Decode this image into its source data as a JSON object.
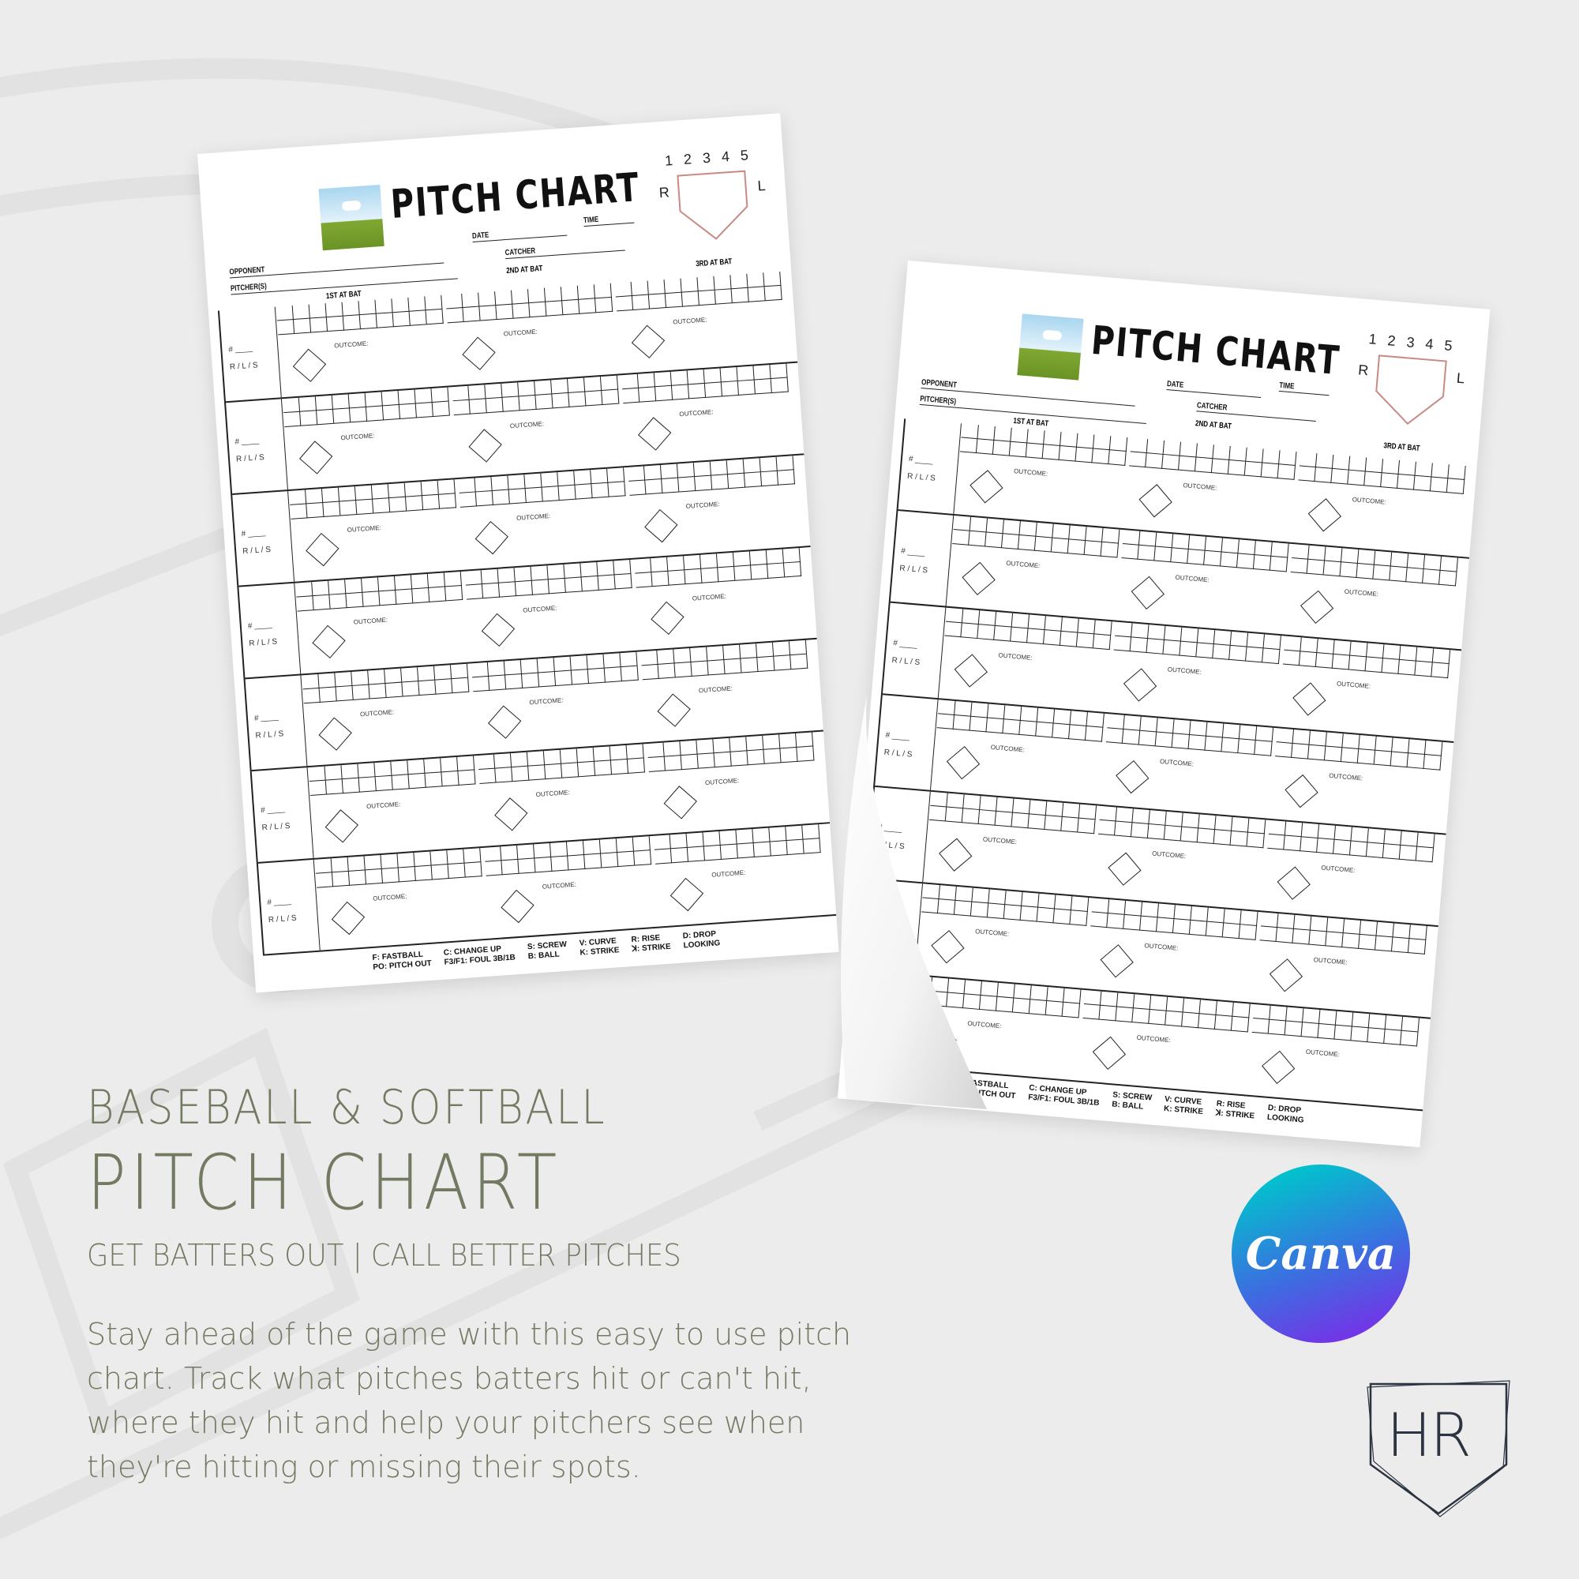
{
  "sheet": {
    "title": "PITCH CHART",
    "zone_numbers": [
      "1",
      "2",
      "3",
      "4",
      "5"
    ],
    "zone_right": "R",
    "zone_left": "L",
    "fields": {
      "opponent": "OPPONENT",
      "date": "DATE",
      "time": "TIME",
      "pitchers": "PITCHER(S)",
      "catcher": "CATCHER"
    },
    "at_bats": [
      "1ST AT BAT",
      "2ND AT BAT",
      "3RD AT BAT"
    ],
    "row_number_label": "# ____",
    "row_hand_label": "R / L / S",
    "outcome_label": "OUTCOME:",
    "legend": [
      "F: FASTBALL",
      "C: CHANGE UP",
      "S: SCREW",
      "V: CURVE",
      "R: RISE",
      "D: DROP",
      "PO: PITCH OUT",
      "F3/F1: FOUL 3B/1B",
      "B: BALL",
      "K: STRIKE",
      "ꓘ: STRIKE",
      "LOOKING"
    ]
  },
  "hero": {
    "line1": "BASEBALL & SOFTBALL",
    "line2": "PITCH CHART",
    "tagline": "GET BATTERS OUT  | CALL BETTER PITCHES",
    "description": "Stay ahead of the game with this easy to use pitch chart.  Track what pitches batters hit or can't hit, where they hit and help your pitchers see when they're hitting or missing their spots."
  },
  "badge": {
    "label": "Canva",
    "colors": [
      "#00c4cc",
      "#7d2ae8"
    ]
  },
  "brand_logo": {
    "text": "HR"
  },
  "colors": {
    "text": "#737a62",
    "background": "#ececec",
    "zone": "#c98a86"
  }
}
